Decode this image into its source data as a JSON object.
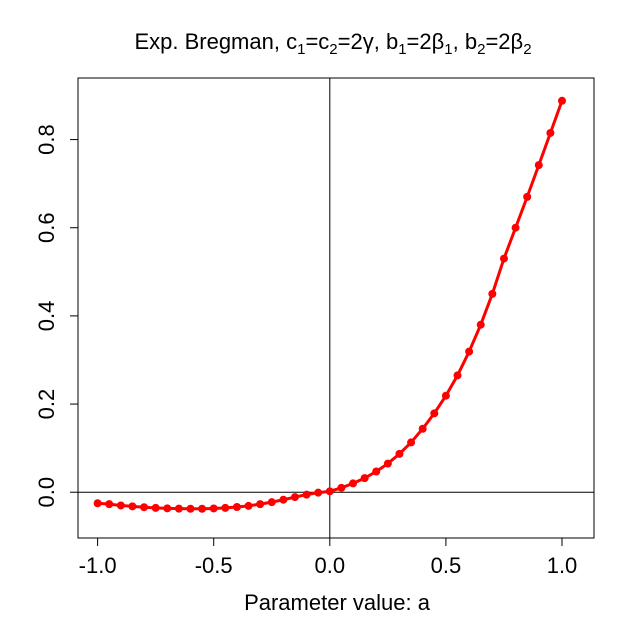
{
  "chart_data": {
    "type": "scatter",
    "title": {
      "parts": [
        {
          "t": "Exp. Bregman, c",
          "s": "n"
        },
        {
          "t": "1",
          "s": "sub"
        },
        {
          "t": "=c",
          "s": "n"
        },
        {
          "t": "2",
          "s": "sub"
        },
        {
          "t": "=2γ, b",
          "s": "n"
        },
        {
          "t": "1",
          "s": "sub"
        },
        {
          "t": "=2β",
          "s": "n"
        },
        {
          "t": "1",
          "s": "sub"
        },
        {
          "t": ", b",
          "s": "n"
        },
        {
          "t": "2",
          "s": "sub"
        },
        {
          "t": "=2β",
          "s": "n"
        },
        {
          "t": "2",
          "s": "sub"
        }
      ]
    },
    "xlabel": "Parameter value: a",
    "ylabel": "",
    "xlim": [
      -1.0,
      1.0
    ],
    "ylim": [
      -0.06,
      0.9
    ],
    "x_ticks": [
      -1.0,
      -0.5,
      0.0,
      0.5,
      1.0
    ],
    "x_tick_labels": [
      "-1.0",
      "-0.5",
      "0.0",
      "0.5",
      "1.0"
    ],
    "y_ticks": [
      0.0,
      0.2,
      0.4,
      0.6,
      0.8
    ],
    "y_tick_labels": [
      "0.0",
      "0.2",
      "0.4",
      "0.6",
      "0.8"
    ],
    "reference_lines": {
      "x": 0,
      "y": 0
    },
    "grid": false,
    "series": [
      {
        "color": "#ff0000",
        "x": [
          -1.0,
          -0.95,
          -0.9,
          -0.85,
          -0.8,
          -0.75,
          -0.7,
          -0.65,
          -0.6,
          -0.55,
          -0.5,
          -0.45,
          -0.4,
          -0.35,
          -0.3,
          -0.25,
          -0.2,
          -0.15,
          -0.1,
          -0.05,
          0.0,
          0.05,
          0.1,
          0.15,
          0.2,
          0.25,
          0.3,
          0.35,
          0.4,
          0.45,
          0.5,
          0.55,
          0.6,
          0.65,
          0.7,
          0.75,
          0.8,
          0.85,
          0.9,
          0.95,
          1.0
        ],
        "y": [
          -0.025,
          -0.027,
          -0.03,
          -0.032,
          -0.034,
          -0.0355,
          -0.0365,
          -0.0372,
          -0.0375,
          -0.0375,
          -0.0368,
          -0.0355,
          -0.0335,
          -0.031,
          -0.027,
          -0.0225,
          -0.017,
          -0.011,
          -0.0055,
          -0.001,
          0.002,
          0.01,
          0.02,
          0.032,
          0.047,
          0.065,
          0.087,
          0.113,
          0.144,
          0.179,
          0.219,
          0.265,
          0.319,
          0.38,
          0.45,
          0.53,
          0.6,
          0.67,
          0.742,
          0.815,
          0.888
        ]
      }
    ]
  }
}
